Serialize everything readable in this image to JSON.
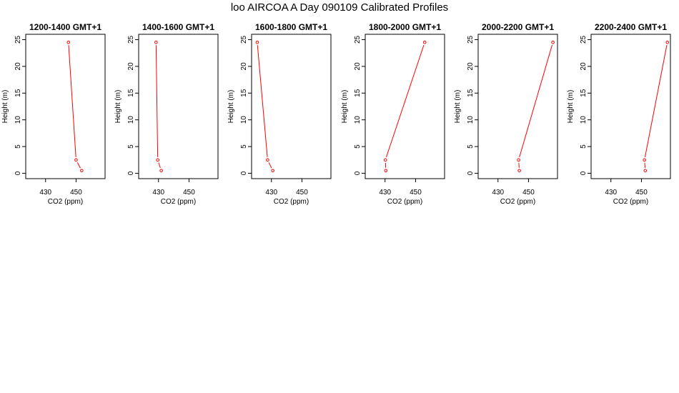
{
  "page": {
    "title": "loo AIRCOA A  Day 090109  Calibrated Profiles"
  },
  "style": {
    "line_color": "#ff0000",
    "point_color": "#ff0000",
    "axis_color": "#000000",
    "background": "#ffffff"
  },
  "chart_data": [
    {
      "type": "line",
      "title": "1200-1400 GMT+1",
      "xlabel": "CO2 (ppm)",
      "ylabel": "Height (m)",
      "xlim": [
        417,
        469
      ],
      "ylim": [
        -1,
        26
      ],
      "xticks": [
        430,
        450
      ],
      "yticks": [
        0,
        5,
        10,
        15,
        20,
        25
      ],
      "grid": false,
      "series": [
        {
          "x": [
            445.0,
            450.0,
            453.7
          ],
          "y": [
            24.5,
            2.5,
            0.5
          ]
        }
      ]
    },
    {
      "type": "line",
      "title": "1400-1600 GMT+1",
      "xlabel": "CO2 (ppm)",
      "ylabel": "Height (m)",
      "xlim": [
        417,
        469
      ],
      "ylim": [
        -1,
        26
      ],
      "xticks": [
        430,
        450
      ],
      "yticks": [
        0,
        5,
        10,
        15,
        20,
        25
      ],
      "grid": false,
      "series": [
        {
          "x": [
            428.4,
            429.5,
            431.8
          ],
          "y": [
            24.5,
            2.5,
            0.5
          ]
        }
      ]
    },
    {
      "type": "line",
      "title": "1600-1800 GMT+1",
      "xlabel": "CO2 (ppm)",
      "ylabel": "Height (m)",
      "xlim": [
        417,
        469
      ],
      "ylim": [
        -1,
        26
      ],
      "xticks": [
        430,
        450
      ],
      "yticks": [
        0,
        5,
        10,
        15,
        20,
        25
      ],
      "grid": false,
      "series": [
        {
          "x": [
            420.7,
            427.5,
            430.9
          ],
          "y": [
            24.5,
            2.5,
            0.5
          ]
        }
      ]
    },
    {
      "type": "line",
      "title": "1800-2000 GMT+1",
      "xlabel": "CO2 (ppm)",
      "ylabel": "Height (m)",
      "xlim": [
        417,
        469
      ],
      "ylim": [
        -1,
        26
      ],
      "xticks": [
        430,
        450
      ],
      "yticks": [
        0,
        5,
        10,
        15,
        20,
        25
      ],
      "grid": false,
      "series": [
        {
          "x": [
            456.0,
            430.2,
            430.5
          ],
          "y": [
            24.5,
            2.5,
            0.5
          ]
        }
      ]
    },
    {
      "type": "line",
      "title": "2000-2200 GMT+1",
      "xlabel": "CO2 (ppm)",
      "ylabel": "Height (m)",
      "xlim": [
        417,
        469
      ],
      "ylim": [
        -1,
        26
      ],
      "xticks": [
        430,
        450
      ],
      "yticks": [
        0,
        5,
        10,
        15,
        20,
        25
      ],
      "grid": false,
      "series": [
        {
          "x": [
            466.0,
            443.5,
            444.0
          ],
          "y": [
            24.5,
            2.5,
            0.5
          ]
        }
      ]
    },
    {
      "type": "line",
      "title": "2200-2400 GMT+1",
      "xlabel": "CO2 (ppm)",
      "ylabel": "Height (m)",
      "xlim": [
        417,
        469
      ],
      "ylim": [
        -1,
        26
      ],
      "xticks": [
        430,
        450
      ],
      "yticks": [
        0,
        5,
        10,
        15,
        20,
        25
      ],
      "grid": false,
      "series": [
        {
          "x": [
            467.0,
            452.0,
            452.5
          ],
          "y": [
            24.5,
            2.5,
            0.5
          ]
        }
      ]
    }
  ]
}
